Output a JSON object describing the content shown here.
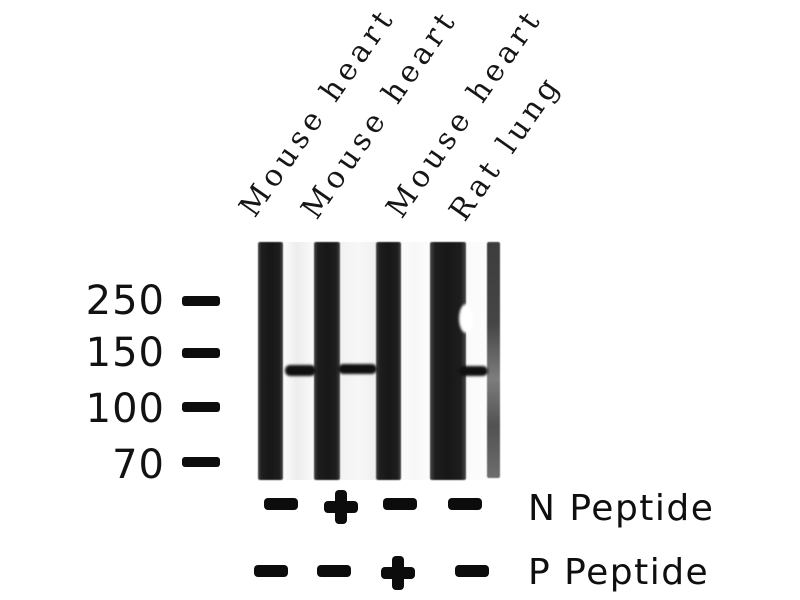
{
  "lanes": [
    "Mouse heart",
    "Mouse heart",
    "Mouse heart",
    "Rat lung"
  ],
  "mw_markers": [
    "250",
    "150",
    "100",
    "70"
  ],
  "treatment_rows": [
    {
      "label": "N Peptide",
      "symbols": [
        "-",
        "+",
        "-",
        "-"
      ]
    },
    {
      "label": "P Peptide",
      "symbols": [
        "-",
        "-",
        "+",
        "-"
      ]
    }
  ],
  "bands": {
    "approx_kda": 135,
    "lane_gaps_with_band": [
      1,
      2,
      4
    ],
    "lane_gap_without_band": 3
  },
  "colors": {
    "background": "#ffffff",
    "stripe_dark": "#1a1a1a",
    "stripe_faint_gray": "#565656",
    "band": "#101010",
    "text": "#121212"
  }
}
